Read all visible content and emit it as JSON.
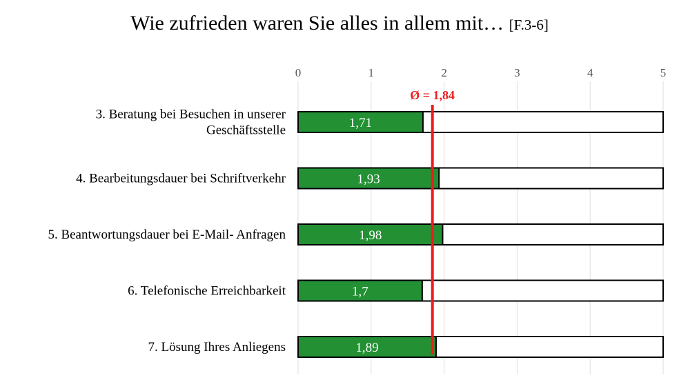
{
  "chart_data": {
    "type": "bar",
    "orientation": "horizontal",
    "title": "Wie zufrieden waren Sie alles in allem mit…",
    "title_code": "[F.3-6]",
    "categories": [
      [
        "3. Beratung bei Besuchen in unserer",
        "Geschäftsstelle"
      ],
      [
        "4. Bearbeitungsdauer bei Schriftverkehr"
      ],
      [
        "5. Beantwortungsdauer bei E-Mail- Anfragen"
      ],
      [
        "6. Telefonische Erreichbarkeit"
      ],
      [
        "7. Lösung Ihres Anliegens"
      ]
    ],
    "values": [
      1.71,
      1.93,
      1.98,
      1.7,
      1.89
    ],
    "value_labels": [
      "1,71",
      "1,93",
      "1,98",
      "1,7",
      "1,89"
    ],
    "xlim": [
      0,
      5
    ],
    "xticks": [
      0,
      1,
      2,
      3,
      4,
      5
    ],
    "xtick_labels": [
      "0",
      "1",
      "2",
      "3",
      "4",
      "5"
    ],
    "xaxis_position": "top",
    "grid": true,
    "legend": "none",
    "average": {
      "value": 1.84,
      "label": "Ø = 1,84"
    },
    "colors": {
      "bar_fill": "#229033",
      "track_fill": "#ffffff",
      "outline": "#000000",
      "average_line": "#ee1c1c",
      "gridline": "#dddddd",
      "tick_text": "#555555"
    }
  }
}
